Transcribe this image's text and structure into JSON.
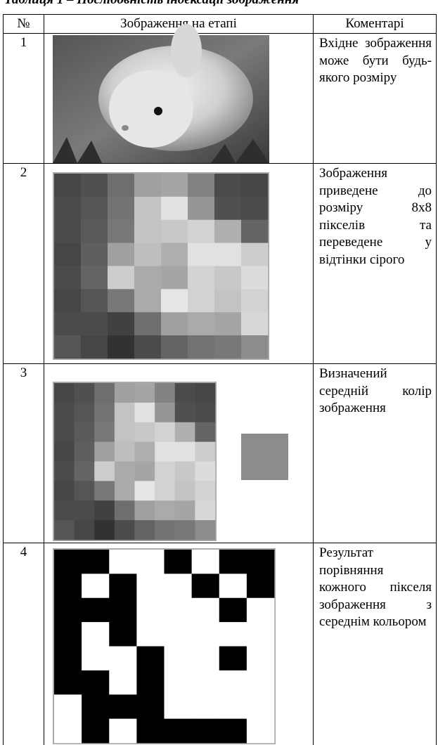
{
  "caption": "Таблиця 1 – Послідовність індексації зображення",
  "table": {
    "header": [
      "№",
      "Зображення на етапі",
      "Коментарі"
    ],
    "rows": [
      {
        "number": "1",
        "comment": "Вхідне зображення може бути будь-якого розміру"
      },
      {
        "number": "2",
        "comment": "Зображення приведене до розміру 8x8 пікселів та переведене у відтінки сірого"
      },
      {
        "number": "3",
        "comment": "Визначений середній колір зображення"
      },
      {
        "number": "4",
        "comment": "Результат порівняння кожного пікселя зображення з середнім кольором"
      }
    ]
  }
}
